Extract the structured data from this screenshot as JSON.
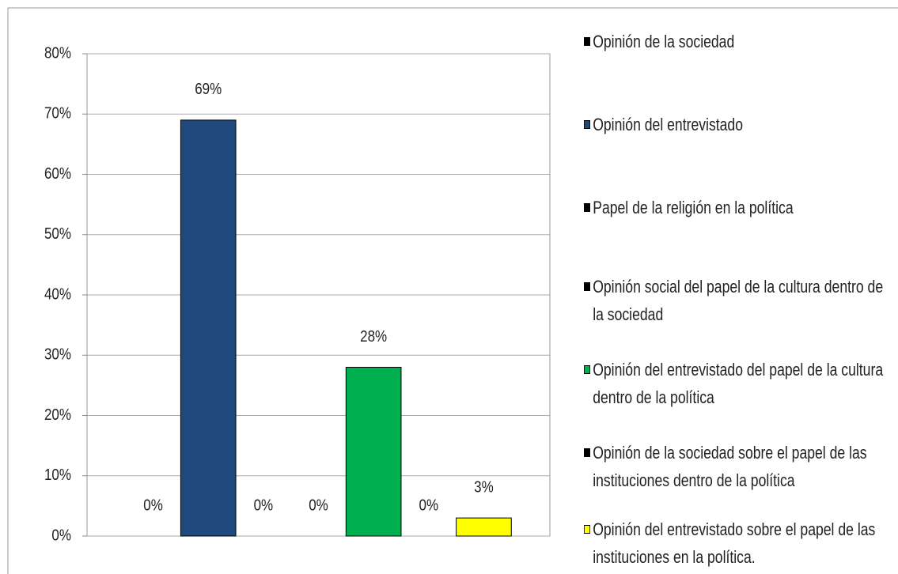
{
  "chart_data": {
    "type": "bar",
    "series": [
      {
        "name": "Opinión de la sociedad",
        "color": "#000000",
        "values": [
          0
        ],
        "value_labels": [
          "0%"
        ]
      },
      {
        "name": "Opinión del entrevistado",
        "color": "#1f497d",
        "values": [
          69
        ],
        "value_labels": [
          "69%"
        ]
      },
      {
        "name": "Papel de la religión en la política",
        "color": "#000000",
        "values": [
          0
        ],
        "value_labels": [
          "0%"
        ]
      },
      {
        "name": "Opinión social del papel de la cultura dentro de la sociedad",
        "color": "#000000",
        "values": [
          0
        ],
        "value_labels": [
          "0%"
        ]
      },
      {
        "name": "Opinión del entrevistado del papel de la cultura dentro de la política",
        "color": "#00b050",
        "values": [
          28
        ],
        "value_labels": [
          "28%"
        ]
      },
      {
        "name": "Opinión de la sociedad sobre el papel de las instituciones dentro de la política",
        "color": "#000000",
        "values": [
          0
        ],
        "value_labels": [
          "0%"
        ]
      },
      {
        "name": "Opinión del entrevistado sobre el papel de las instituciones en la política.",
        "color": "#ffff00",
        "values": [
          3
        ],
        "value_labels": [
          "3%"
        ]
      }
    ],
    "ylim": [
      0,
      80
    ],
    "yticks": [
      {
        "value": 0,
        "label": "0%"
      },
      {
        "value": 10,
        "label": "10%"
      },
      {
        "value": 20,
        "label": "20%"
      },
      {
        "value": 30,
        "label": "30%"
      },
      {
        "value": 40,
        "label": "40%"
      },
      {
        "value": 50,
        "label": "50%"
      },
      {
        "value": 60,
        "label": "60%"
      },
      {
        "value": 70,
        "label": "70%"
      },
      {
        "value": 80,
        "label": "80%"
      }
    ],
    "grid": true,
    "legend": "right"
  }
}
